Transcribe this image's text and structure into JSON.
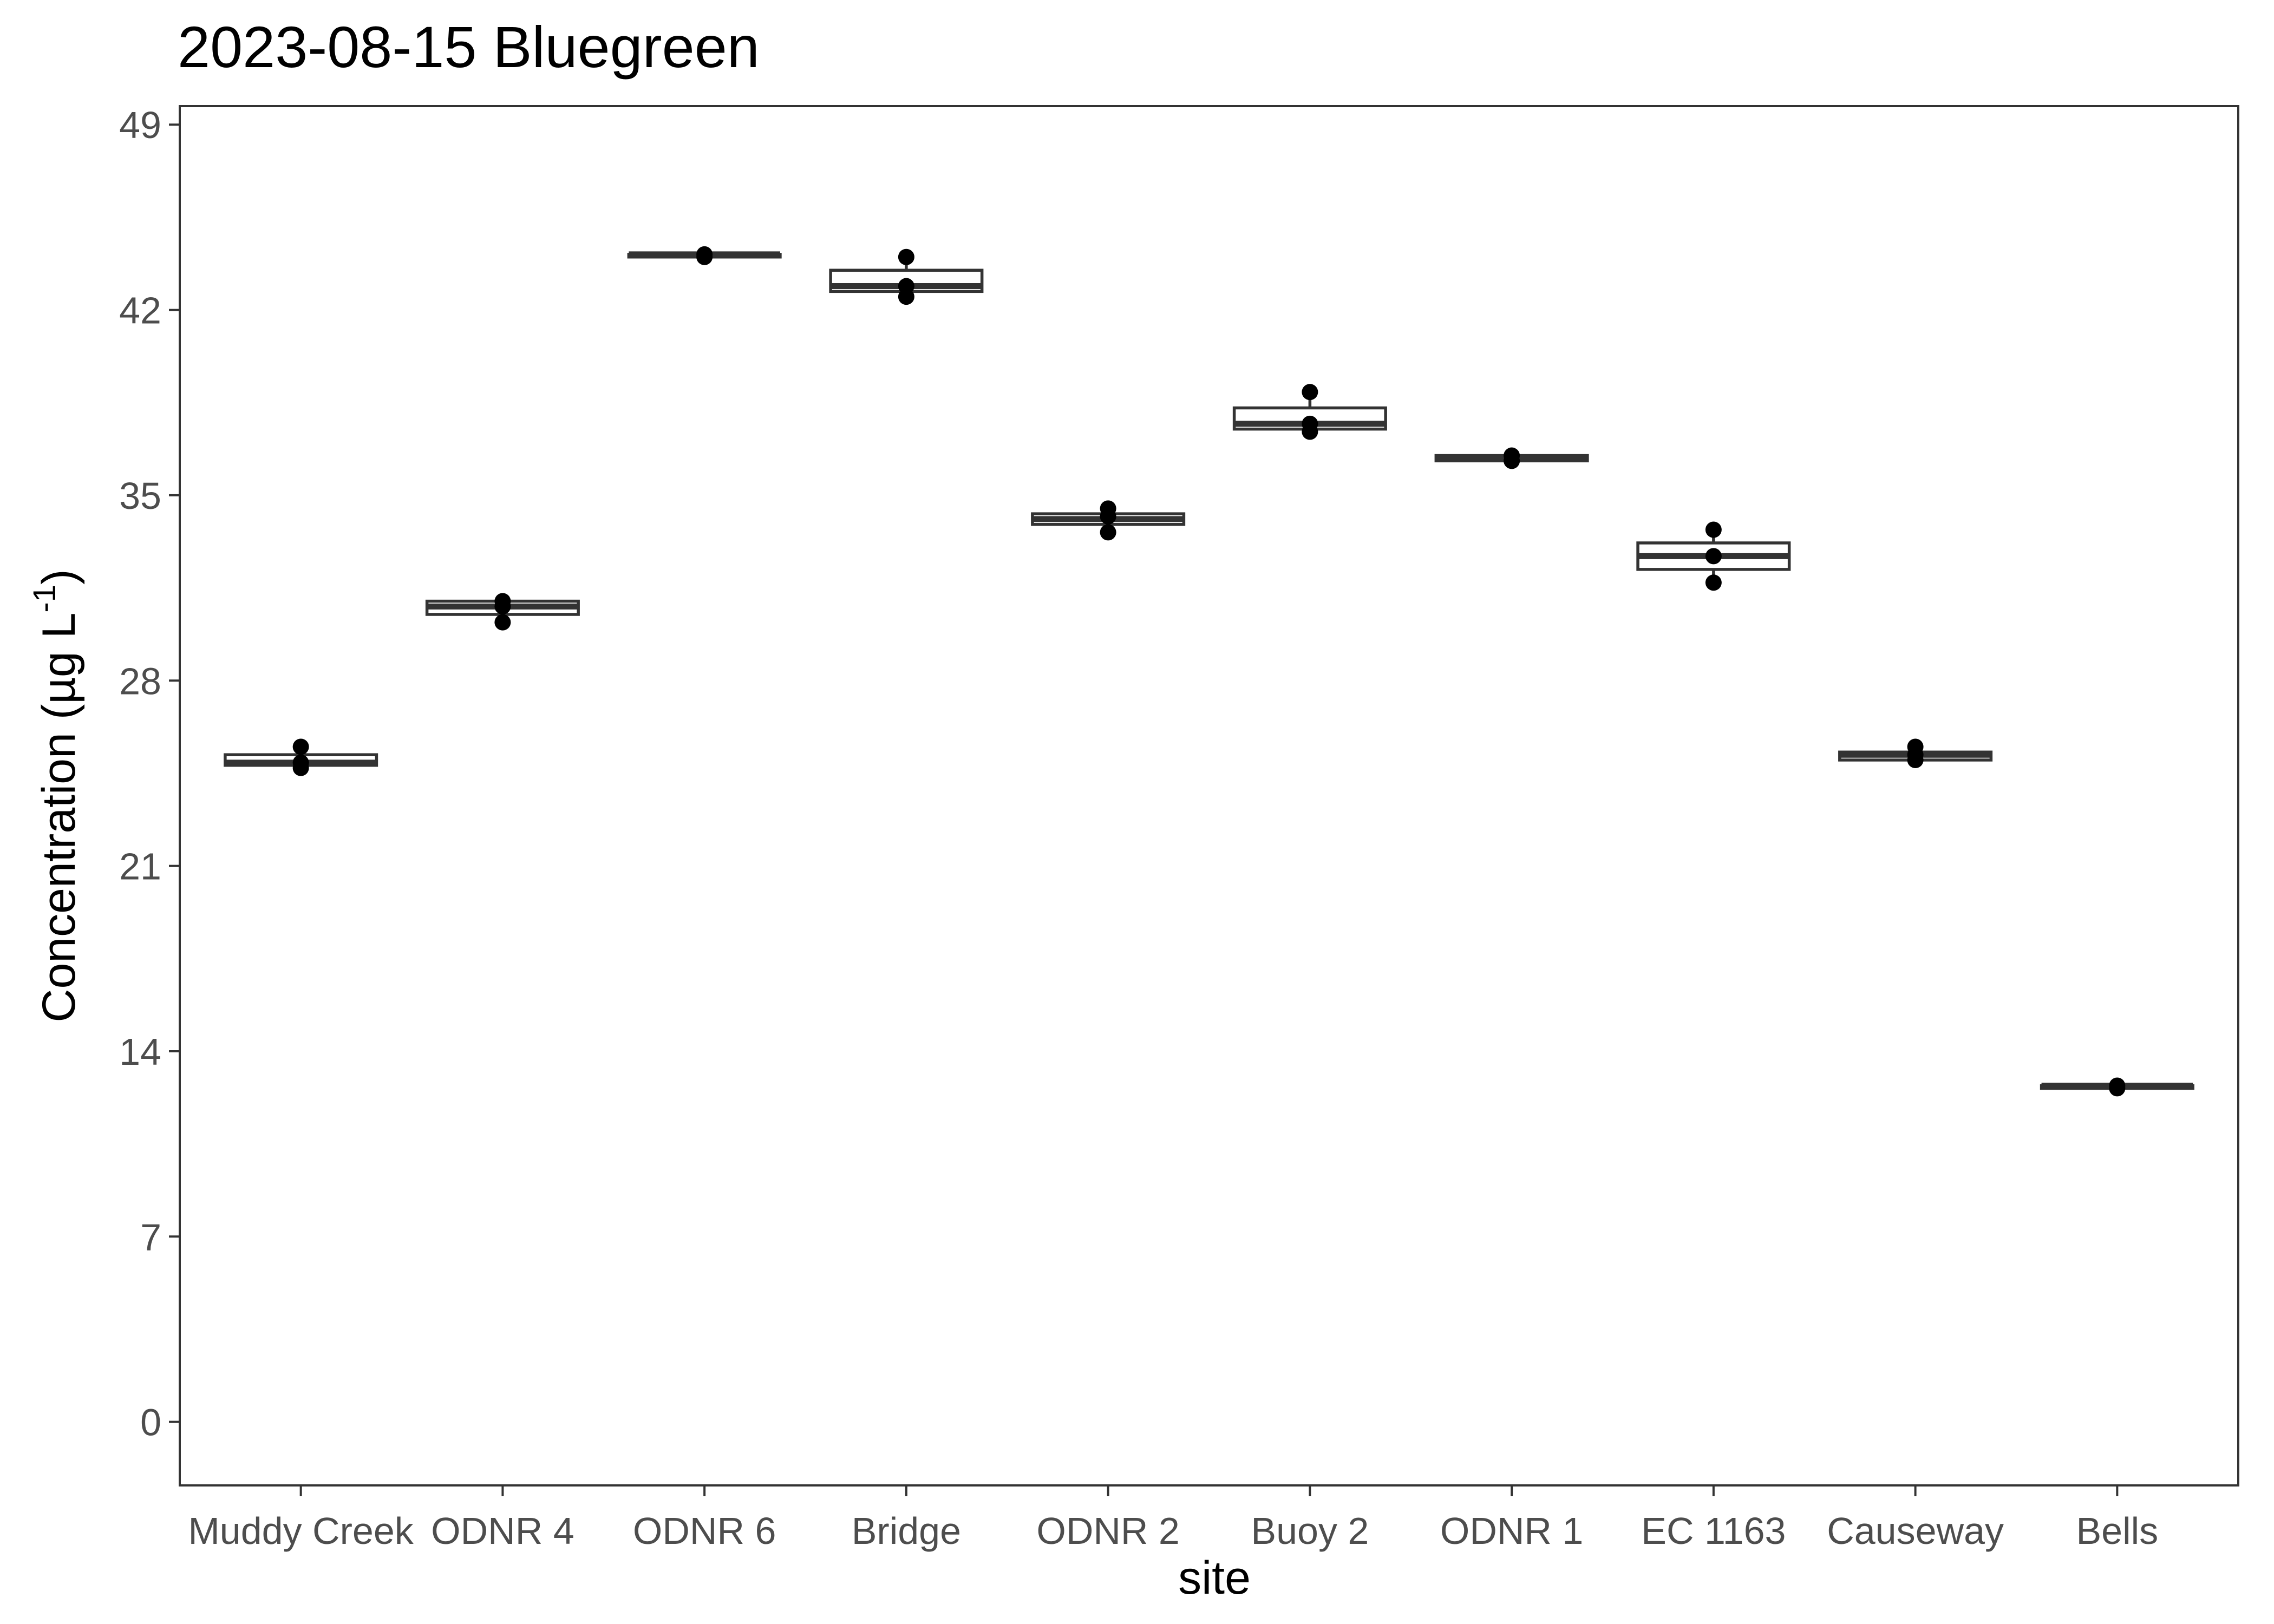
{
  "chart_data": {
    "type": "box",
    "title": "2023-08-15 Bluegreen",
    "xlabel": "site",
    "ylabel": "Concentration (µg L",
    "ylabel_sup": "-1",
    "ylabel_close": ")",
    "ylim": [
      -2.4,
      49.7
    ],
    "yticks": [
      0,
      7,
      14,
      21,
      28,
      35,
      42,
      49
    ],
    "ytick_labels": [
      "0",
      "7",
      "14",
      "21",
      "28",
      "35",
      "42",
      "49"
    ],
    "grid": false,
    "legend": "none",
    "categories": [
      "Muddy Creek",
      "ODNR 4",
      "ODNR 6",
      "Bridge",
      "ODNR 2",
      "Buoy 2",
      "ODNR 1",
      "EC 1163",
      "Causeway",
      "Bells"
    ],
    "boxes": [
      {
        "q1": 24.8,
        "median": 24.9,
        "q3": 25.2,
        "min": 24.8,
        "max": 25.2,
        "points": [
          25.5,
          24.9,
          24.7
        ]
      },
      {
        "q1": 30.5,
        "median": 30.8,
        "q3": 31.0,
        "min": 30.5,
        "max": 31.0,
        "points": [
          31.0,
          30.8,
          30.2
        ]
      },
      {
        "q1": 44.0,
        "median": 44.1,
        "q3": 44.1,
        "min": 44.0,
        "max": 44.1,
        "points": [
          44.0,
          44.1
        ]
      },
      {
        "q1": 42.7,
        "median": 42.9,
        "q3": 43.5,
        "min": 42.5,
        "max": 44.0,
        "points": [
          44.0,
          42.9,
          42.5
        ]
      },
      {
        "q1": 33.9,
        "median": 34.1,
        "q3": 34.3,
        "min": 33.6,
        "max": 34.5,
        "points": [
          34.5,
          34.2,
          33.6
        ]
      },
      {
        "q1": 37.5,
        "median": 37.7,
        "q3": 38.3,
        "min": 37.4,
        "max": 38.9,
        "points": [
          38.9,
          37.7,
          37.4
        ]
      },
      {
        "q1": 36.3,
        "median": 36.4,
        "q3": 36.5,
        "min": 36.3,
        "max": 36.5,
        "points": [
          36.5,
          36.3
        ]
      },
      {
        "q1": 32.2,
        "median": 32.7,
        "q3": 33.2,
        "min": 31.7,
        "max": 33.7,
        "points": [
          33.7,
          32.7,
          31.7
        ]
      },
      {
        "q1": 25.0,
        "median": 25.2,
        "q3": 25.3,
        "min": 25.0,
        "max": 25.5,
        "points": [
          25.5,
          25.2,
          25.0
        ]
      },
      {
        "q1": 12.6,
        "median": 12.7,
        "q3": 12.7,
        "min": 12.6,
        "max": 12.7,
        "points": [
          12.7,
          12.6
        ]
      }
    ],
    "colors": {
      "box_fill": "#ffffff",
      "box_line": "#333333",
      "points": "#000000"
    }
  }
}
